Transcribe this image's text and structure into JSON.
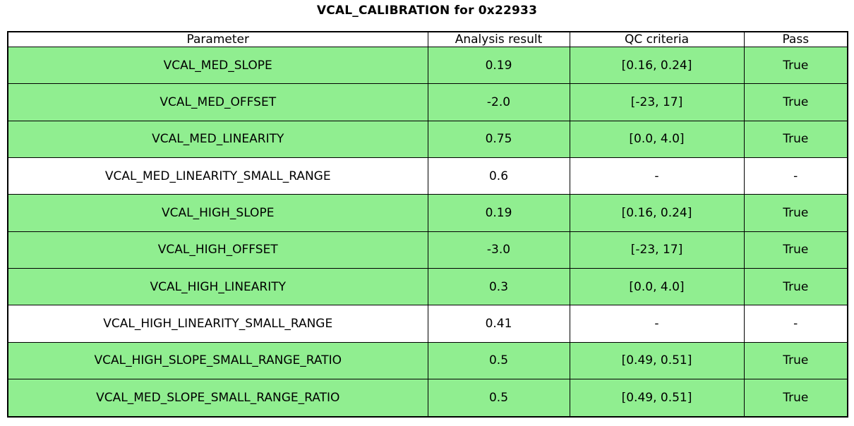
{
  "title": "VCAL_CALIBRATION for 0x22933",
  "colors": {
    "pass_row_bg": "#90ee90",
    "neutral_row_bg": "#ffffff",
    "border": "#000000",
    "text": "#000000"
  },
  "table": {
    "columns": [
      "Parameter",
      "Analysis result",
      "QC criteria",
      "Pass"
    ],
    "rows": [
      {
        "parameter": "VCAL_MED_SLOPE",
        "analysis_result": "0.19",
        "qc_criteria": "[0.16, 0.24]",
        "pass": "True",
        "highlighted": true
      },
      {
        "parameter": "VCAL_MED_OFFSET",
        "analysis_result": "-2.0",
        "qc_criteria": "[-23, 17]",
        "pass": "True",
        "highlighted": true
      },
      {
        "parameter": "VCAL_MED_LINEARITY",
        "analysis_result": "0.75",
        "qc_criteria": "[0.0, 4.0]",
        "pass": "True",
        "highlighted": true
      },
      {
        "parameter": "VCAL_MED_LINEARITY_SMALL_RANGE",
        "analysis_result": "0.6",
        "qc_criteria": "-",
        "pass": "-",
        "highlighted": false
      },
      {
        "parameter": "VCAL_HIGH_SLOPE",
        "analysis_result": "0.19",
        "qc_criteria": "[0.16, 0.24]",
        "pass": "True",
        "highlighted": true
      },
      {
        "parameter": "VCAL_HIGH_OFFSET",
        "analysis_result": "-3.0",
        "qc_criteria": "[-23, 17]",
        "pass": "True",
        "highlighted": true
      },
      {
        "parameter": "VCAL_HIGH_LINEARITY",
        "analysis_result": "0.3",
        "qc_criteria": "[0.0, 4.0]",
        "pass": "True",
        "highlighted": true
      },
      {
        "parameter": "VCAL_HIGH_LINEARITY_SMALL_RANGE",
        "analysis_result": "0.41",
        "qc_criteria": "-",
        "pass": "-",
        "highlighted": false
      },
      {
        "parameter": "VCAL_HIGH_SLOPE_SMALL_RANGE_RATIO",
        "analysis_result": "0.5",
        "qc_criteria": "[0.49, 0.51]",
        "pass": "True",
        "highlighted": true
      },
      {
        "parameter": "VCAL_MED_SLOPE_SMALL_RANGE_RATIO",
        "analysis_result": "0.5",
        "qc_criteria": "[0.49, 0.51]",
        "pass": "True",
        "highlighted": true
      }
    ]
  },
  "chart_data": {
    "type": "table",
    "title": "VCAL_CALIBRATION for 0x22933",
    "columns": [
      "Parameter",
      "Analysis result",
      "QC criteria",
      "Pass"
    ],
    "rows": [
      [
        "VCAL_MED_SLOPE",
        "0.19",
        "[0.16, 0.24]",
        "True"
      ],
      [
        "VCAL_MED_OFFSET",
        "-2.0",
        "[-23, 17]",
        "True"
      ],
      [
        "VCAL_MED_LINEARITY",
        "0.75",
        "[0.0, 4.0]",
        "True"
      ],
      [
        "VCAL_MED_LINEARITY_SMALL_RANGE",
        "0.6",
        "-",
        "-"
      ],
      [
        "VCAL_HIGH_SLOPE",
        "0.19",
        "[0.16, 0.24]",
        "True"
      ],
      [
        "VCAL_HIGH_OFFSET",
        "-3.0",
        "[-23, 17]",
        "True"
      ],
      [
        "VCAL_HIGH_LINEARITY",
        "0.3",
        "[0.0, 4.0]",
        "True"
      ],
      [
        "VCAL_HIGH_LINEARITY_SMALL_RANGE",
        "0.41",
        "-",
        "-"
      ],
      [
        "VCAL_HIGH_SLOPE_SMALL_RANGE_RATIO",
        "0.5",
        "[0.49, 0.51]",
        "True"
      ],
      [
        "VCAL_MED_SLOPE_SMALL_RANGE_RATIO",
        "0.5",
        "[0.49, 0.51]",
        "True"
      ]
    ],
    "pass_rows_highlighted_green": [
      0,
      1,
      2,
      4,
      5,
      6,
      8,
      9
    ],
    "legend_position": "none",
    "grid": "table-borders"
  }
}
